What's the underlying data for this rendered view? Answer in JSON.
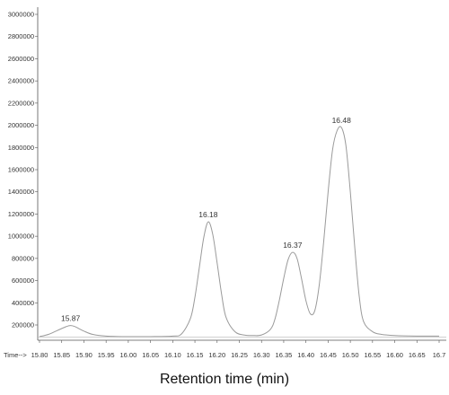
{
  "chart_data": {
    "type": "line",
    "title": "",
    "xlabel": "Retention time (min)",
    "x_axis_prefix": "Time-->",
    "ylabel": "",
    "xlim": [
      15.8,
      16.7
    ],
    "ylim": [
      100000,
      3000000
    ],
    "x_ticks": [
      "15.80",
      "15.85",
      "15.90",
      "15.95",
      "16.00",
      "16.05",
      "16.10",
      "16.15",
      "16.20",
      "16.25",
      "16.30",
      "16.35",
      "16.40",
      "16.45",
      "16.50",
      "16.55",
      "16.60",
      "16.65",
      "16.7"
    ],
    "y_ticks": [
      "200000",
      "400000",
      "600000",
      "800000",
      "1000000",
      "1200000",
      "1400000",
      "1600000",
      "1800000",
      "2000000",
      "2200000",
      "2400000",
      "2600000",
      "2800000",
      "3000000"
    ],
    "grid": false,
    "series": [
      {
        "x": [
          15.8,
          15.82,
          15.84,
          15.86,
          15.87,
          15.88,
          15.9,
          15.92,
          15.95,
          16.0,
          16.05,
          16.1,
          16.12,
          16.14,
          16.15,
          16.16,
          16.17,
          16.18,
          16.19,
          16.2,
          16.21,
          16.22,
          16.24,
          16.26,
          16.28,
          16.3,
          16.32,
          16.33,
          16.34,
          16.35,
          16.36,
          16.37,
          16.38,
          16.39,
          16.4,
          16.41,
          16.42,
          16.43,
          16.44,
          16.45,
          16.46,
          16.47,
          16.48,
          16.49,
          16.5,
          16.51,
          16.52,
          16.53,
          16.55,
          16.57,
          16.6,
          16.65,
          16.7
        ],
        "y": [
          95000,
          115000,
          150000,
          185000,
          195000,
          185000,
          145000,
          115000,
          100000,
          95000,
          95000,
          100000,
          120000,
          260000,
          450000,
          720000,
          990000,
          1130000,
          1020000,
          760000,
          480000,
          270000,
          140000,
          110000,
          105000,
          110000,
          160000,
          250000,
          420000,
          620000,
          790000,
          855000,
          800000,
          620000,
          420000,
          300000,
          330000,
          560000,
          950000,
          1400000,
          1780000,
          1950000,
          1980000,
          1820000,
          1400000,
          900000,
          460000,
          230000,
          140000,
          115000,
          105000,
          100000,
          100000
        ]
      }
    ],
    "annotations": [
      {
        "label": "15.87",
        "x": 15.87,
        "y": 195000
      },
      {
        "label": "16.18",
        "x": 16.18,
        "y": 1130000
      },
      {
        "label": "16.37",
        "x": 16.37,
        "y": 855000
      },
      {
        "label": "16.48",
        "x": 16.48,
        "y": 1980000
      }
    ],
    "colors": {
      "trace": "#9a9a9a",
      "axis": "#555555",
      "text": "#333333"
    }
  }
}
